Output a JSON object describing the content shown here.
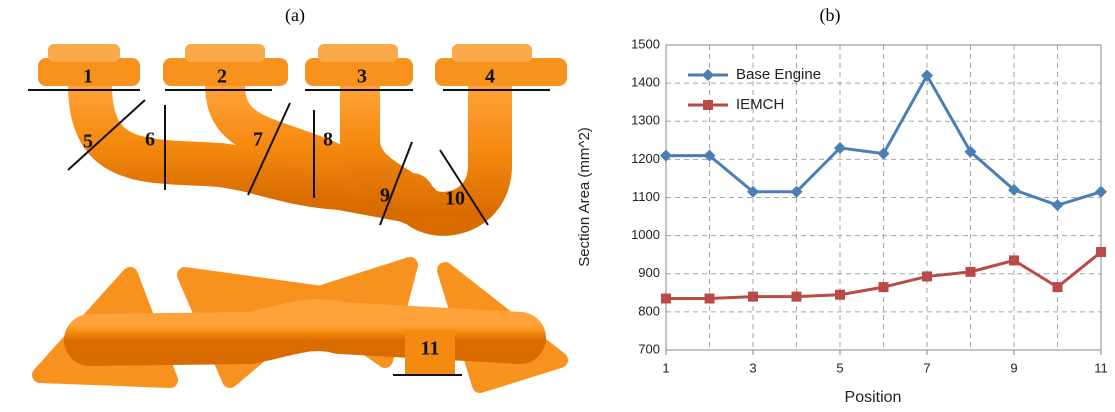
{
  "panels": {
    "a": "(a)",
    "b": "(b)"
  },
  "figure_a": {
    "labels": [
      "1",
      "2",
      "3",
      "4",
      "5",
      "6",
      "7",
      "8",
      "9",
      "10",
      "11"
    ]
  },
  "chart_data": {
    "type": "line",
    "x_label": "Position",
    "y_label": "Section Area (mm^2)",
    "x": [
      1,
      2,
      3,
      4,
      5,
      6,
      7,
      8,
      9,
      10,
      11
    ],
    "series": [
      {
        "name": "Base Engine",
        "color": "#4a7eb5",
        "marker": "diamond",
        "values": [
          1210,
          1210,
          1115,
          1115,
          1230,
          1215,
          1420,
          1220,
          1120,
          1080,
          1115
        ]
      },
      {
        "name": "IEMCH",
        "color": "#b94a48",
        "marker": "square",
        "values": [
          835,
          835,
          840,
          840,
          845,
          865,
          893,
          905,
          935,
          865,
          957
        ]
      }
    ],
    "xlim": [
      1,
      11
    ],
    "xticks": [
      1,
      3,
      5,
      7,
      9,
      11
    ],
    "ylim": [
      700,
      1500
    ],
    "yticks": [
      700,
      800,
      900,
      1000,
      1100,
      1200,
      1300,
      1400,
      1500
    ],
    "grid": true,
    "grid_style": "dashed",
    "legend": "upper-left"
  }
}
